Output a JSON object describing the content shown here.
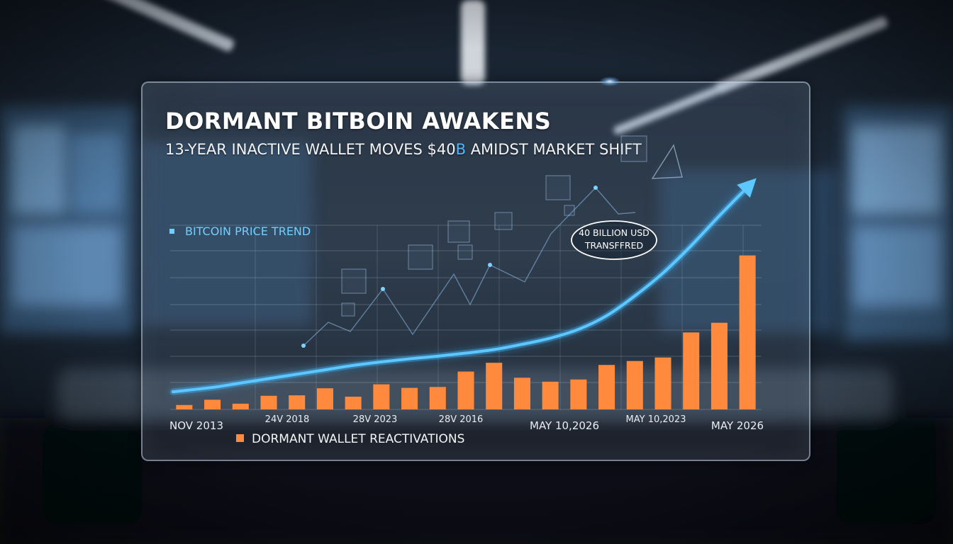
{
  "colors": {
    "price_line": "#3fb6ff",
    "bars": "#ff8a3d",
    "background_dark": "#0b121c",
    "subtitle_highlight": "#4fb8ff"
  },
  "chart_data": {
    "type": "bar",
    "title": "DORMANT BITBOIN AWAKENS",
    "subtitle": {
      "before": "13-YEAR INACTIVE WALLET MOVES $40",
      "highlight": "B",
      "after": " AMIDST MARKET SHIFT"
    },
    "xlabel": "",
    "ylabel": "",
    "grid": true,
    "x_tick_labels": [
      {
        "label": "NOV 2013",
        "index": 0
      },
      {
        "label": "24V 2018",
        "index": 4
      },
      {
        "label": "28V 2023",
        "index": 7
      },
      {
        "label": "28V 2016",
        "index": 10
      },
      {
        "label": "MAY 10,2026",
        "index": 13
      },
      {
        "label": "MAY 10,2023",
        "index": 17
      },
      {
        "label": "MAY 2026",
        "index": 20
      }
    ],
    "series": [
      {
        "name": "DORMANT WALLET REACTIVATIONS",
        "type": "bar",
        "values": [
          1.0,
          2.2,
          1.3,
          3.1,
          3.2,
          4.8,
          2.9,
          5.7,
          4.9,
          5.1,
          8.6,
          10.6,
          7.2,
          6.3,
          6.8,
          10.1,
          11.0,
          11.8,
          17.5,
          19.7,
          35.0
        ]
      },
      {
        "name": "BITCOIN PRICE TREND",
        "type": "line",
        "values": [
          4.0,
          5.0,
          6.0,
          7.0,
          8.0,
          9.0,
          10.0,
          10.8,
          11.5,
          12.1,
          12.8,
          13.6,
          14.8,
          16.2,
          18.2,
          21.3,
          25.8,
          31.0,
          37.2,
          44.0,
          50.5
        ]
      }
    ],
    "ylim": [
      0,
      52
    ],
    "legend": [
      {
        "label": "BITCOIN PRICE TREND",
        "placement": "upper-left"
      },
      {
        "label": "DORMANT WALLET REACTIVATIONS",
        "placement": "bottom-left"
      }
    ],
    "annotations": [
      {
        "lines": [
          "40 BILLION USD",
          "TRANSFFRED"
        ],
        "near_index": 15
      }
    ]
  }
}
